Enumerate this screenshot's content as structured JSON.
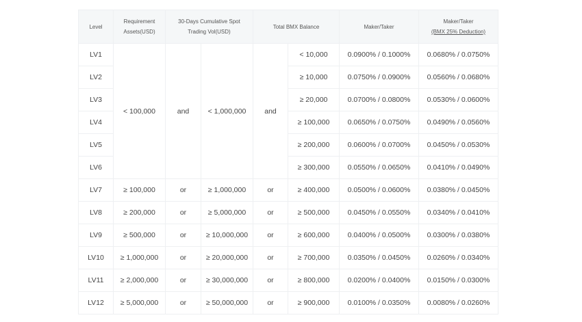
{
  "table": {
    "headers": {
      "level": "Level",
      "requirement_line1": "Requirement",
      "requirement_line2": "Assets(USD)",
      "volume_line1": "30-Days Cumulative Spot",
      "volume_line2": "Trading Vol(USD)",
      "bmx_balance": "Total BMX Balance",
      "maker_taker": "Maker/Taker",
      "maker_taker_deduct_line1": "Maker/Taker",
      "maker_taker_deduct_line2": "(BMX 25% Deduction)"
    },
    "merged": {
      "assets": "< 100,000",
      "and1": "and",
      "volume": "< 1,000,000",
      "and2": "and"
    },
    "rows": [
      {
        "level": "LV1",
        "assets": "",
        "op1": "",
        "volume": "",
        "op2": "",
        "bmx": "< 10,000",
        "fee": "0.0900% / 0.1000%",
        "fee_deduct": "0.0680% / 0.0750%"
      },
      {
        "level": "LV2",
        "assets": "",
        "op1": "",
        "volume": "",
        "op2": "",
        "bmx": "≥ 10,000",
        "fee": "0.0750% / 0.0900%",
        "fee_deduct": "0.0560% / 0.0680%"
      },
      {
        "level": "LV3",
        "assets": "",
        "op1": "",
        "volume": "",
        "op2": "",
        "bmx": "≥ 20,000",
        "fee": "0.0700% / 0.0800%",
        "fee_deduct": "0.0530% / 0.0600%"
      },
      {
        "level": "LV4",
        "assets": "",
        "op1": "",
        "volume": "",
        "op2": "",
        "bmx": "≥ 100,000",
        "fee": "0.0650% / 0.0750%",
        "fee_deduct": "0.0490% / 0.0560%"
      },
      {
        "level": "LV5",
        "assets": "",
        "op1": "",
        "volume": "",
        "op2": "",
        "bmx": "≥ 200,000",
        "fee": "0.0600% / 0.0700%",
        "fee_deduct": "0.0450% / 0.0530%"
      },
      {
        "level": "LV6",
        "assets": "",
        "op1": "",
        "volume": "",
        "op2": "",
        "bmx": "≥ 300,000",
        "fee": "0.0550% / 0.0650%",
        "fee_deduct": "0.0410% / 0.0490%"
      },
      {
        "level": "LV7",
        "assets": "≥ 100,000",
        "op1": "or",
        "volume": "≥ 1,000,000",
        "op2": "or",
        "bmx": "≥ 400,000",
        "fee": "0.0500% / 0.0600%",
        "fee_deduct": "0.0380% / 0.0450%"
      },
      {
        "level": "LV8",
        "assets": "≥ 200,000",
        "op1": "or",
        "volume": "≥ 5,000,000",
        "op2": "or",
        "bmx": "≥ 500,000",
        "fee": "0.0450% / 0.0550%",
        "fee_deduct": "0.0340% / 0.0410%"
      },
      {
        "level": "LV9",
        "assets": "≥ 500,000",
        "op1": "or",
        "volume": "≥ 10,000,000",
        "op2": "or",
        "bmx": "≥ 600,000",
        "fee": "0.0400% / 0.0500%",
        "fee_deduct": "0.0300% / 0.0380%"
      },
      {
        "level": "LV10",
        "assets": "≥ 1,000,000",
        "op1": "or",
        "volume": "≥ 20,000,000",
        "op2": "or",
        "bmx": "≥ 700,000",
        "fee": "0.0350% / 0.0450%",
        "fee_deduct": "0.0260% / 0.0340%"
      },
      {
        "level": "LV11",
        "assets": "≥ 2,000,000",
        "op1": "or",
        "volume": "≥ 30,000,000",
        "op2": "or",
        "bmx": "≥ 800,000",
        "fee": "0.0200% / 0.0400%",
        "fee_deduct": "0.0150% / 0.0300%"
      },
      {
        "level": "LV12",
        "assets": "≥ 5,000,000",
        "op1": "or",
        "volume": "≥ 50,000,000",
        "op2": "or",
        "bmx": "≥ 900,000",
        "fee": "0.0100% / 0.0350%",
        "fee_deduct": "0.0080% / 0.0260%"
      }
    ]
  }
}
